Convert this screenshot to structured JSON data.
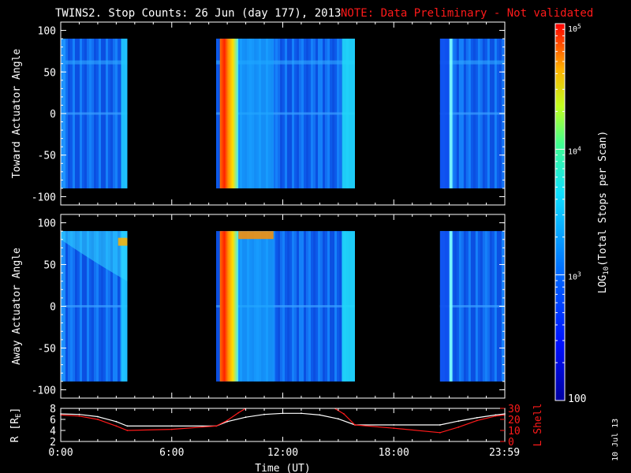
{
  "title": "TWINS2. Stop Counts: 26 Jun (day 177), 2013",
  "note": "NOTE: Data Preliminary - Not validated",
  "side_date": "10 Jul 13",
  "colors": {
    "background": "#000000",
    "axis": "#ffffff",
    "note": "#ff1a1a",
    "lshell": "#ff1a1a",
    "radius": "#ffffff"
  },
  "chart_data": [
    {
      "type": "heatmap",
      "ylabel": "Toward Actuator Angle",
      "ylim": [
        -110,
        110
      ],
      "yticks": [
        100,
        50,
        0,
        -50,
        -100
      ],
      "angle_range": [
        -90,
        90
      ],
      "xlim_hours": [
        0,
        24
      ],
      "data_intervals_hours": [
        [
          0.0,
          3.6
        ],
        [
          8.4,
          15.9
        ],
        [
          20.5,
          24.0
        ]
      ],
      "bright_band_hours": [
        [
          8.6,
          9.6
        ]
      ],
      "note": "log counts mostly ~1e3 (blue/cyan) with saturated orange/red band at ~8.6-9.5 UT"
    },
    {
      "type": "heatmap",
      "ylabel": "Away Actuator Angle",
      "ylim": [
        -110,
        110
      ],
      "yticks": [
        100,
        50,
        0,
        -50,
        -100
      ],
      "angle_range": [
        -90,
        90
      ],
      "xlim_hours": [
        0,
        24
      ],
      "data_intervals_hours": [
        [
          0.0,
          3.6
        ],
        [
          8.4,
          15.9
        ],
        [
          20.5,
          24.0
        ]
      ],
      "bright_band_hours": [
        [
          8.6,
          9.6
        ]
      ]
    },
    {
      "type": "line",
      "ylabel_left": "R [R",
      "ylabel_left_sub": "E",
      "ylabel_left_end": "]",
      "ylabel_right": "L Shell",
      "ylim_left": [
        2,
        8
      ],
      "ylim_right": [
        0,
        30
      ],
      "yticks_left": [
        8,
        6,
        4,
        2
      ],
      "yticks_right": [
        30,
        20,
        10,
        0
      ],
      "xlabel": "Time (UT)",
      "xtick_labels": [
        "0:00",
        "6:00",
        "12:00",
        "18:00",
        "23:59"
      ],
      "xtick_hours": [
        0,
        6,
        12,
        18,
        23.98
      ],
      "series": [
        {
          "axis": "left",
          "color": "#ffffff",
          "x": [
            0,
            1,
            2,
            3,
            3.6,
            6,
            8.4,
            9,
            10,
            11,
            12,
            13,
            14,
            15,
            15.9,
            18,
            20.5,
            21.5,
            22.5,
            23.5,
            24
          ],
          "y": [
            7.0,
            6.9,
            6.5,
            5.6,
            4.8,
            4.8,
            4.8,
            5.6,
            6.4,
            6.9,
            7.1,
            7.1,
            6.8,
            6.1,
            5.0,
            5.0,
            5.0,
            5.7,
            6.3,
            6.8,
            7.0
          ]
        },
        {
          "axis": "right",
          "color": "#ff1a1a",
          "x": [
            0,
            1,
            2,
            3,
            3.6,
            6,
            8.4,
            9,
            9.6,
            10.2,
            14.6,
            15.3,
            15.9,
            18,
            20.5,
            21.5,
            22.5,
            23.5,
            24
          ],
          "y": [
            24,
            23,
            20,
            14,
            10,
            11,
            14,
            19,
            26,
            32,
            32,
            25,
            15,
            12,
            8,
            13,
            19,
            23,
            24
          ]
        }
      ]
    }
  ],
  "colorbar": {
    "label_pre": "LOG",
    "label_sub": "10",
    "label_post": "(Total Stops per Scan)",
    "tick_labels": [
      "10",
      "10",
      "10"
    ],
    "tick_exps": [
      "5",
      "4",
      "3"
    ],
    "bottom_label": "100",
    "log_range": [
      2,
      5
    ],
    "tick_logs": [
      5,
      4,
      3
    ]
  }
}
